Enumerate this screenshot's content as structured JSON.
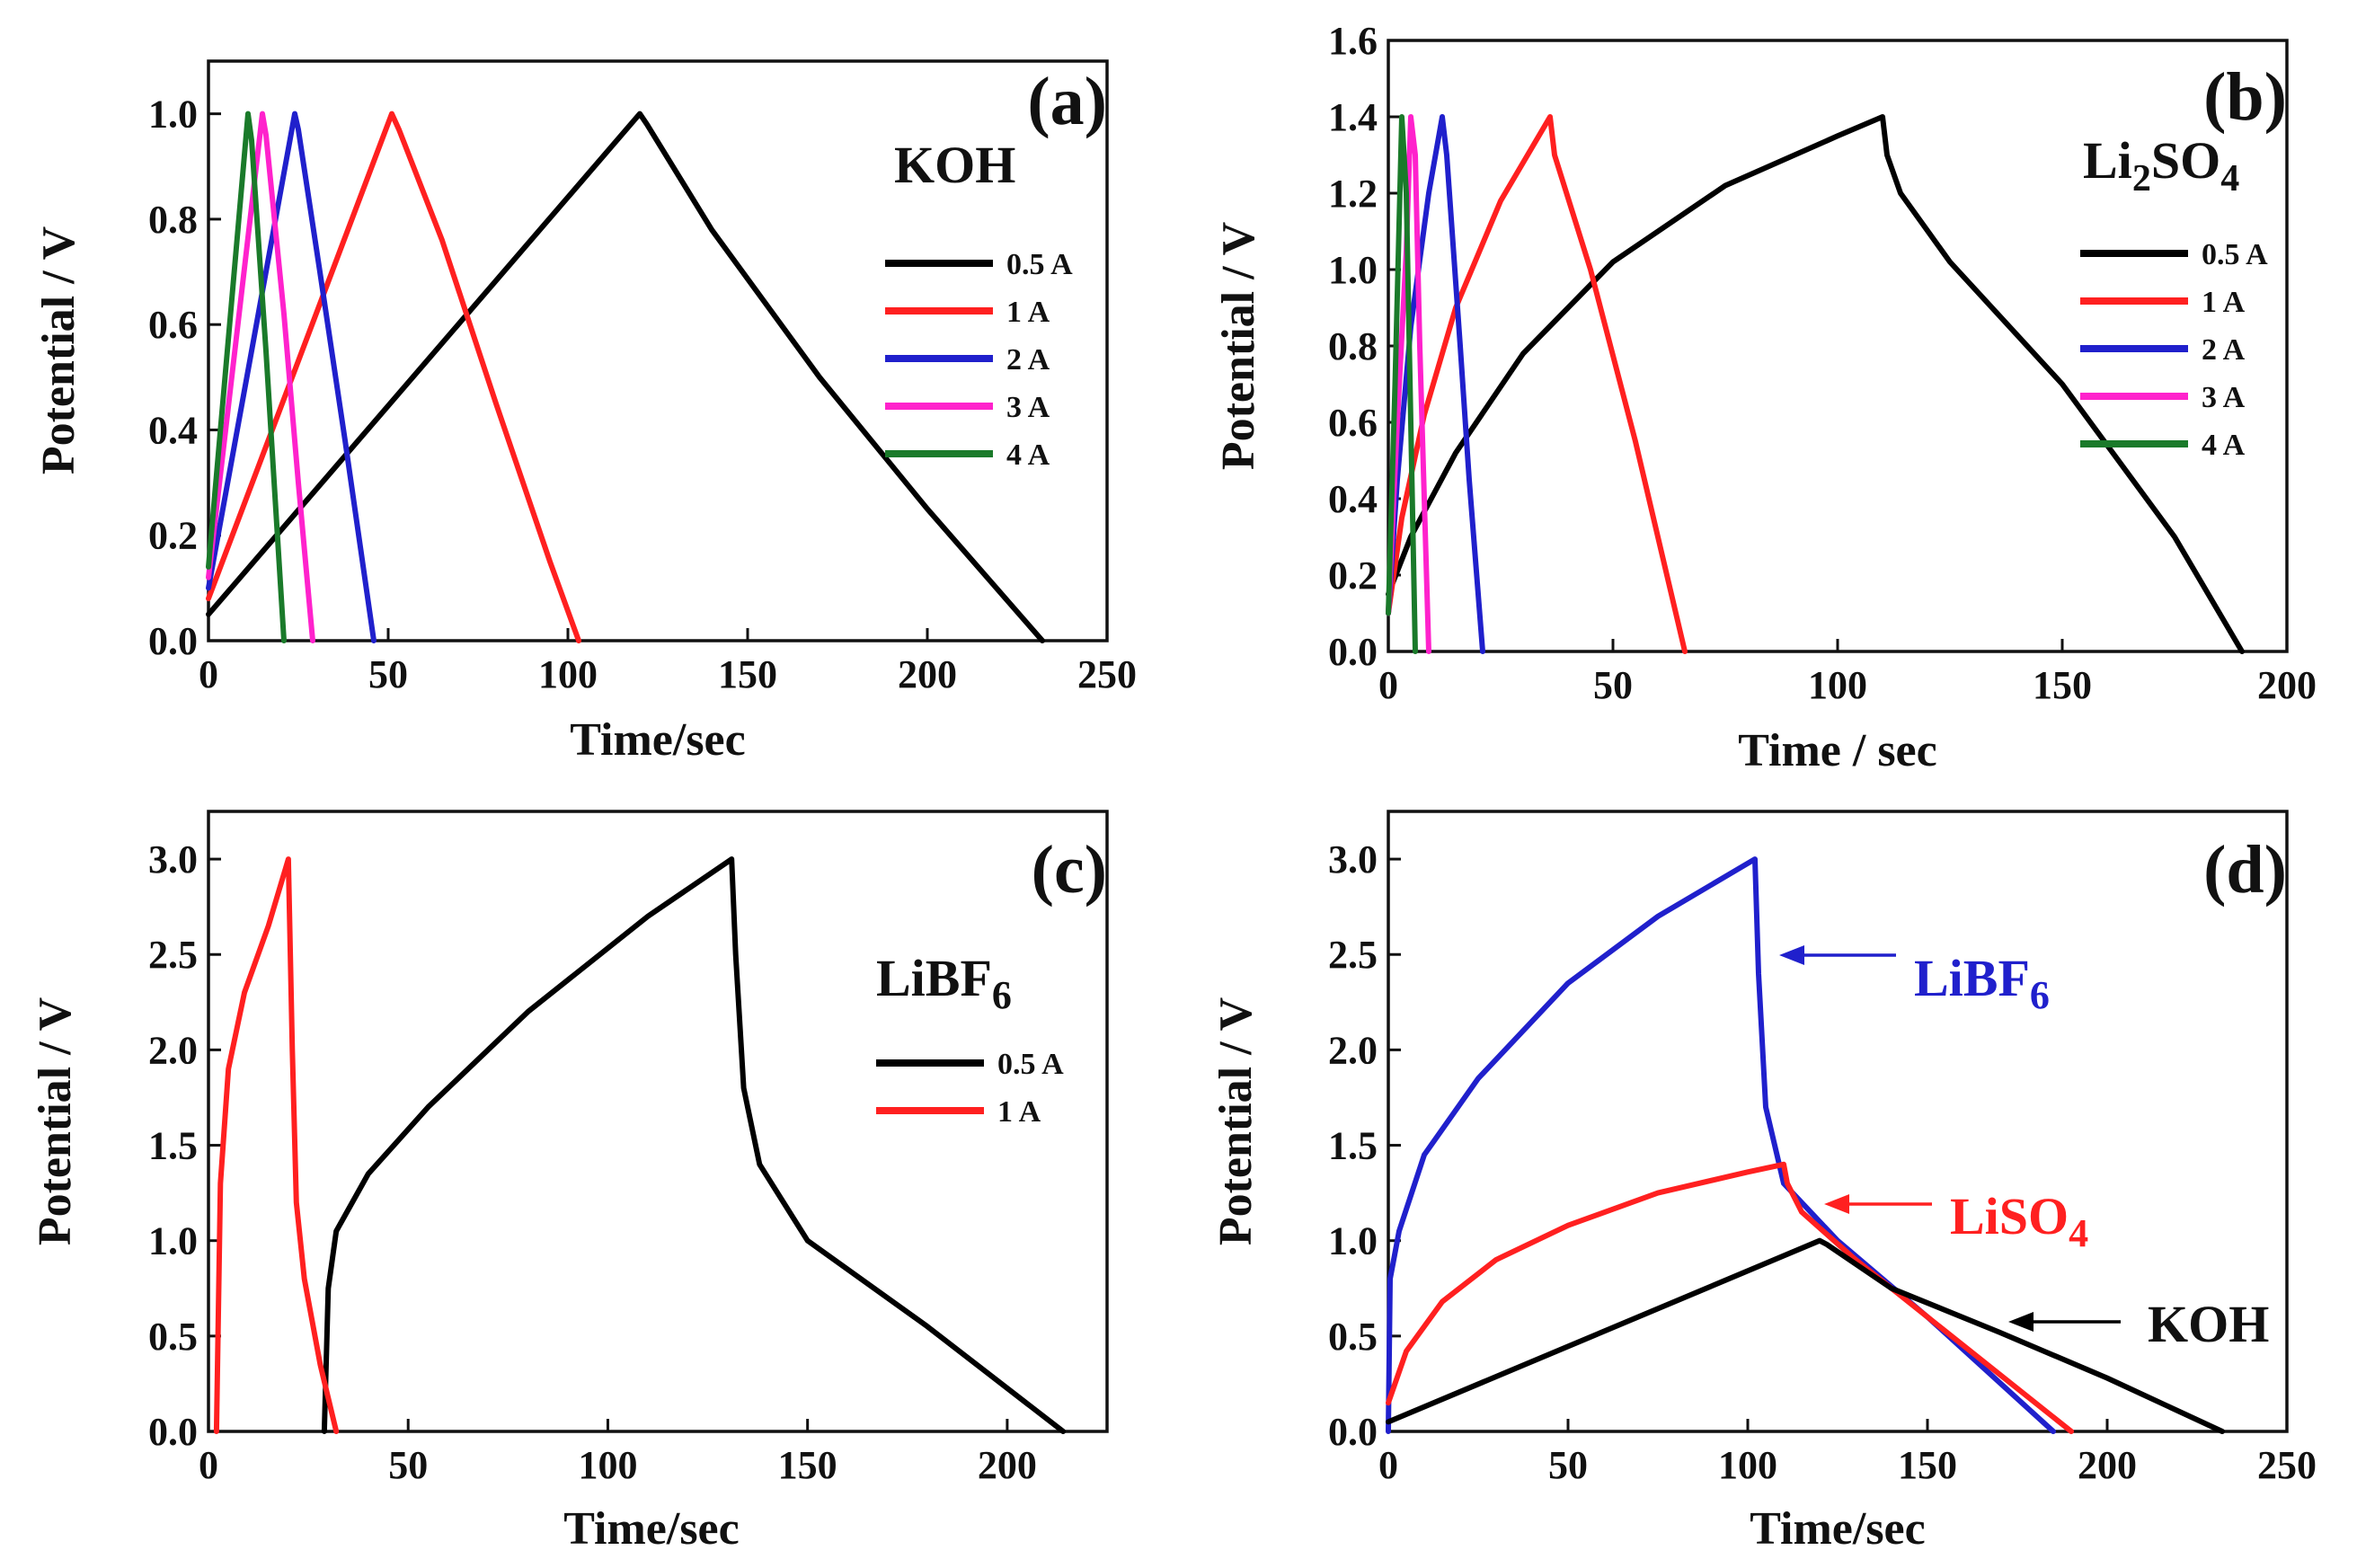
{
  "chart_data": [
    {
      "type": "line",
      "panel": "(a)",
      "electrolyte": {
        "main": "KOH",
        "sub": ""
      },
      "xlabel": "Time/sec",
      "ylabel": "Potential / V",
      "xlim": [
        0,
        250
      ],
      "ylim": [
        0,
        1.1
      ],
      "xticks": [
        "0",
        "50",
        "100",
        "150",
        "200",
        "250"
      ],
      "yticks": [
        "0.0",
        "0.2",
        "0.4",
        "0.6",
        "0.8",
        "1.0"
      ],
      "legend_position": "right",
      "legend": [
        {
          "label": "0.5 A",
          "color": "#000000"
        },
        {
          "label": "1 A",
          "color": "#ff2020"
        },
        {
          "label": "2 A",
          "color": "#2020cc"
        },
        {
          "label": "3 A",
          "color": "#ff22cc"
        },
        {
          "label": "4 A",
          "color": "#1a7a2a"
        }
      ],
      "series": [
        {
          "name": "0.5 A",
          "color": "#000000",
          "points": [
            [
              0,
              0.05
            ],
            [
              120,
              1.0
            ],
            [
              122,
              0.98
            ],
            [
              140,
              0.78
            ],
            [
              170,
              0.5
            ],
            [
              200,
              0.25
            ],
            [
              232,
              0.0
            ]
          ]
        },
        {
          "name": "1 A",
          "color": "#ff2020",
          "points": [
            [
              0,
              0.08
            ],
            [
              51,
              1.0
            ],
            [
              53,
              0.97
            ],
            [
              65,
              0.76
            ],
            [
              80,
              0.45
            ],
            [
              95,
              0.15
            ],
            [
              103,
              0.0
            ]
          ]
        },
        {
          "name": "2 A",
          "color": "#2020cc",
          "points": [
            [
              0,
              0.1
            ],
            [
              24,
              1.0
            ],
            [
              25,
              0.97
            ],
            [
              31,
              0.7
            ],
            [
              38,
              0.38
            ],
            [
              46,
              0.0
            ]
          ]
        },
        {
          "name": "3 A",
          "color": "#ff22cc",
          "points": [
            [
              0,
              0.12
            ],
            [
              15,
              1.0
            ],
            [
              16,
              0.96
            ],
            [
              21,
              0.62
            ],
            [
              25,
              0.3
            ],
            [
              29,
              0.0
            ]
          ]
        },
        {
          "name": "4 A",
          "color": "#1a7a2a",
          "points": [
            [
              0,
              0.14
            ],
            [
              11,
              1.0
            ],
            [
              12,
              0.95
            ],
            [
              16,
              0.55
            ],
            [
              21,
              0.0
            ]
          ]
        }
      ]
    },
    {
      "type": "line",
      "panel": "(b)",
      "electrolyte": {
        "main": "Li",
        "sub": "2",
        "main2": "SO",
        "sub2": "4"
      },
      "xlabel": "Time / sec",
      "ylabel": "Potential / V",
      "xlim": [
        0,
        200
      ],
      "ylim": [
        0,
        1.6
      ],
      "xticks": [
        "0",
        "50",
        "100",
        "150",
        "200"
      ],
      "yticks": [
        "0.0",
        "0.2",
        "0.4",
        "0.6",
        "0.8",
        "1.0",
        "1.2",
        "1.4",
        "1.6"
      ],
      "legend_position": "right",
      "legend": [
        {
          "label": "0.5 A",
          "color": "#000000"
        },
        {
          "label": "1 A",
          "color": "#ff2020"
        },
        {
          "label": "2 A",
          "color": "#2020cc"
        },
        {
          "label": "3 A",
          "color": "#ff22cc"
        },
        {
          "label": "4 A",
          "color": "#1a7a2a"
        }
      ],
      "series": [
        {
          "name": "0.5 A",
          "color": "#000000",
          "points": [
            [
              0,
              0.15
            ],
            [
              5,
              0.3
            ],
            [
              15,
              0.52
            ],
            [
              30,
              0.78
            ],
            [
              50,
              1.02
            ],
            [
              75,
              1.22
            ],
            [
              100,
              1.35
            ],
            [
              110,
              1.4
            ],
            [
              111,
              1.3
            ],
            [
              114,
              1.2
            ],
            [
              125,
              1.02
            ],
            [
              150,
              0.7
            ],
            [
              175,
              0.3
            ],
            [
              190,
              0.0
            ]
          ]
        },
        {
          "name": "1 A",
          "color": "#ff2020",
          "points": [
            [
              0,
              0.1
            ],
            [
              3,
              0.35
            ],
            [
              8,
              0.62
            ],
            [
              15,
              0.9
            ],
            [
              25,
              1.18
            ],
            [
              36,
              1.4
            ],
            [
              37,
              1.3
            ],
            [
              45,
              1.0
            ],
            [
              55,
              0.55
            ],
            [
              66,
              0.0
            ]
          ]
        },
        {
          "name": "2 A",
          "color": "#2020cc",
          "points": [
            [
              0,
              0.1
            ],
            [
              2,
              0.45
            ],
            [
              5,
              0.85
            ],
            [
              9,
              1.2
            ],
            [
              12,
              1.4
            ],
            [
              13,
              1.3
            ],
            [
              16,
              0.8
            ],
            [
              18,
              0.45
            ],
            [
              21,
              0.0
            ]
          ]
        },
        {
          "name": "3 A",
          "color": "#ff22cc",
          "points": [
            [
              0,
              0.1
            ],
            [
              2,
              0.6
            ],
            [
              4,
              1.05
            ],
            [
              5,
              1.4
            ],
            [
              6,
              1.3
            ],
            [
              7,
              0.8
            ],
            [
              9,
              0.0
            ]
          ]
        },
        {
          "name": "4 A",
          "color": "#1a7a2a",
          "points": [
            [
              0,
              0.1
            ],
            [
              1.5,
              0.7
            ],
            [
              3,
              1.4
            ],
            [
              4,
              1.2
            ],
            [
              5,
              0.6
            ],
            [
              6,
              0.0
            ]
          ]
        }
      ]
    },
    {
      "type": "line",
      "panel": "(c)",
      "electrolyte": {
        "main": "LiBF",
        "sub": "6"
      },
      "xlabel": "Time/sec",
      "ylabel": "Potential / V",
      "xlim": [
        0,
        225
      ],
      "ylim": [
        0,
        3.25
      ],
      "xticks": [
        "0",
        "50",
        "100",
        "150",
        "200"
      ],
      "yticks": [
        "0.0",
        "0.5",
        "1.0",
        "1.5",
        "2.0",
        "2.5",
        "3.0"
      ],
      "legend_position": "right",
      "legend": [
        {
          "label": "0.5 A",
          "color": "#000000"
        },
        {
          "label": "1 A",
          "color": "#ff2020"
        }
      ],
      "series": [
        {
          "name": "0.5 A",
          "color": "#000000",
          "points": [
            [
              29,
              0.0
            ],
            [
              30,
              0.75
            ],
            [
              32,
              1.05
            ],
            [
              40,
              1.35
            ],
            [
              55,
              1.7
            ],
            [
              80,
              2.2
            ],
            [
              110,
              2.7
            ],
            [
              131,
              3.0
            ],
            [
              132,
              2.5
            ],
            [
              134,
              1.8
            ],
            [
              138,
              1.4
            ],
            [
              150,
              1.0
            ],
            [
              180,
              0.55
            ],
            [
              214,
              0.0
            ]
          ]
        },
        {
          "name": "1 A",
          "color": "#ff2020",
          "points": [
            [
              2,
              0.0
            ],
            [
              3,
              1.3
            ],
            [
              5,
              1.9
            ],
            [
              9,
              2.3
            ],
            [
              15,
              2.65
            ],
            [
              20,
              3.0
            ],
            [
              21,
              2.0
            ],
            [
              22,
              1.2
            ],
            [
              24,
              0.8
            ],
            [
              28,
              0.35
            ],
            [
              32,
              0.0
            ]
          ]
        }
      ]
    },
    {
      "type": "line",
      "panel": "(d)",
      "xlabel": "Time/sec",
      "ylabel": "Potential / V",
      "xlim": [
        0,
        250
      ],
      "ylim": [
        0,
        3.25
      ],
      "xticks": [
        "0",
        "50",
        "100",
        "150",
        "200",
        "250"
      ],
      "yticks": [
        "0.0",
        "0.5",
        "1.0",
        "1.5",
        "2.0",
        "2.5",
        "3.0"
      ],
      "annotations": [
        {
          "main": "LiBF",
          "sub": "6",
          "color": "#2020cc"
        },
        {
          "main": "LiSO",
          "sub": "4",
          "color": "#ff2020"
        },
        {
          "main": "KOH",
          "sub": "",
          "color": "#000000"
        }
      ],
      "series": [
        {
          "name": "LiBF6",
          "color": "#2020cc",
          "points": [
            [
              0,
              0.0
            ],
            [
              0.5,
              0.8
            ],
            [
              3,
              1.05
            ],
            [
              10,
              1.45
            ],
            [
              25,
              1.85
            ],
            [
              50,
              2.35
            ],
            [
              75,
              2.7
            ],
            [
              102,
              3.0
            ],
            [
              103,
              2.4
            ],
            [
              105,
              1.7
            ],
            [
              110,
              1.3
            ],
            [
              125,
              1.0
            ],
            [
              150,
              0.6
            ],
            [
              185,
              0.0
            ]
          ]
        },
        {
          "name": "LiSO4",
          "color": "#ff2020",
          "points": [
            [
              0,
              0.15
            ],
            [
              5,
              0.42
            ],
            [
              15,
              0.68
            ],
            [
              30,
              0.9
            ],
            [
              50,
              1.08
            ],
            [
              75,
              1.25
            ],
            [
              100,
              1.36
            ],
            [
              110,
              1.4
            ],
            [
              111,
              1.3
            ],
            [
              115,
              1.15
            ],
            [
              130,
              0.9
            ],
            [
              150,
              0.6
            ],
            [
              190,
              0.0
            ]
          ]
        },
        {
          "name": "KOH",
          "color": "#000000",
          "points": [
            [
              0,
              0.05
            ],
            [
              120,
              1.0
            ],
            [
              122,
              0.98
            ],
            [
              140,
              0.75
            ],
            [
              170,
              0.52
            ],
            [
              200,
              0.28
            ],
            [
              232,
              0.0
            ]
          ]
        }
      ]
    }
  ]
}
